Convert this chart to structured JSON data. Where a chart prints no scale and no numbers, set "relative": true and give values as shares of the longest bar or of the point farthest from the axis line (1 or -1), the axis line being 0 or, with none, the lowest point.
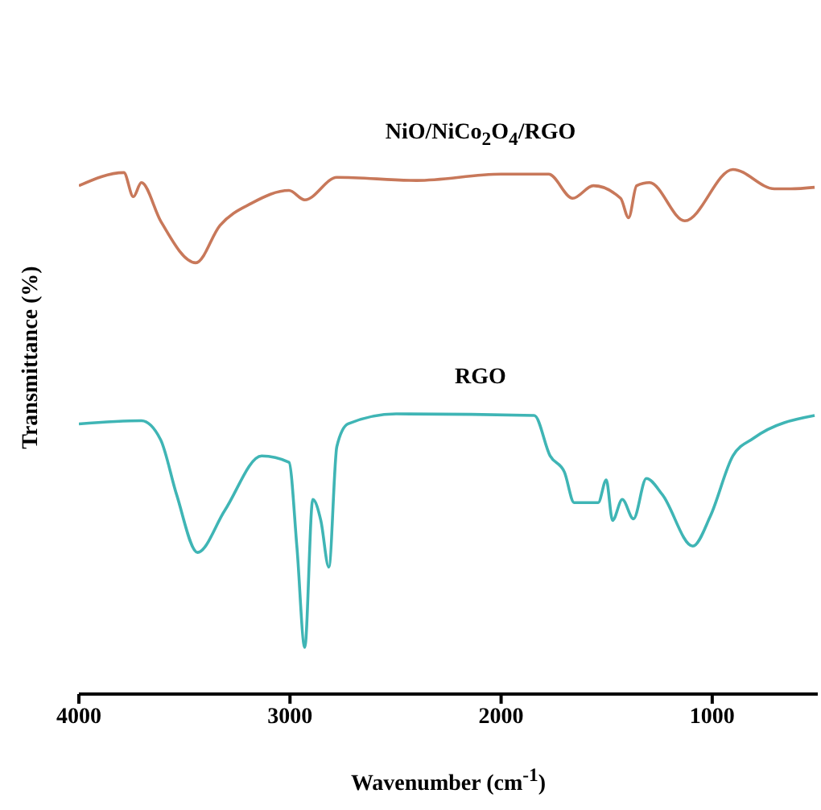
{
  "chart_data": {
    "type": "line",
    "relative": true,
    "xlabel": "Wavenumber (cm$^{-1}$)",
    "ylabel": "Transmittance (%)",
    "xlim": [
      4000,
      500
    ],
    "xticks": [
      4000,
      3000,
      2000,
      1000
    ],
    "marker": "none",
    "series": [
      {
        "name": "NiO/NiCo$_{2}$O$_{4}$/RGO",
        "color": "#c8785a",
        "x": [
          4000,
          3787,
          3742,
          3704,
          3613,
          3446,
          3332,
          3180,
          3005,
          2930,
          2778,
          2400,
          2000,
          1775,
          1661,
          1563,
          1434,
          1396,
          1358,
          1297,
          1130,
          902,
          705,
          628,
          515
        ],
        "values": [
          0.969,
          0.994,
          0.948,
          0.975,
          0.902,
          0.822,
          0.893,
          0.936,
          0.96,
          0.942,
          0.985,
          0.979,
          0.991,
          0.991,
          0.945,
          0.969,
          0.945,
          0.908,
          0.969,
          0.975,
          0.902,
          1.0,
          0.963,
          0.963,
          0.966
        ]
      },
      {
        "name": "RGO",
        "color": "#3fb5b5",
        "x": [
          4000,
          3704,
          3613,
          3537,
          3438,
          3309,
          3134,
          3005,
          2967,
          2930,
          2892,
          2854,
          2816,
          2778,
          2725,
          2497,
          1843,
          1768,
          1700,
          1654,
          1540,
          1502,
          1472,
          1426,
          1373,
          1312,
          1236,
          1092,
          1008,
          902,
          803,
          515
        ],
        "values": [
          0.515,
          0.521,
          0.485,
          0.38,
          0.27,
          0.35,
          0.454,
          0.442,
          0.279,
          0.089,
          0.371,
          0.331,
          0.242,
          0.472,
          0.515,
          0.534,
          0.531,
          0.454,
          0.423,
          0.365,
          0.365,
          0.408,
          0.331,
          0.371,
          0.334,
          0.411,
          0.38,
          0.282,
          0.34,
          0.454,
          0.488,
          0.531
        ]
      }
    ]
  }
}
